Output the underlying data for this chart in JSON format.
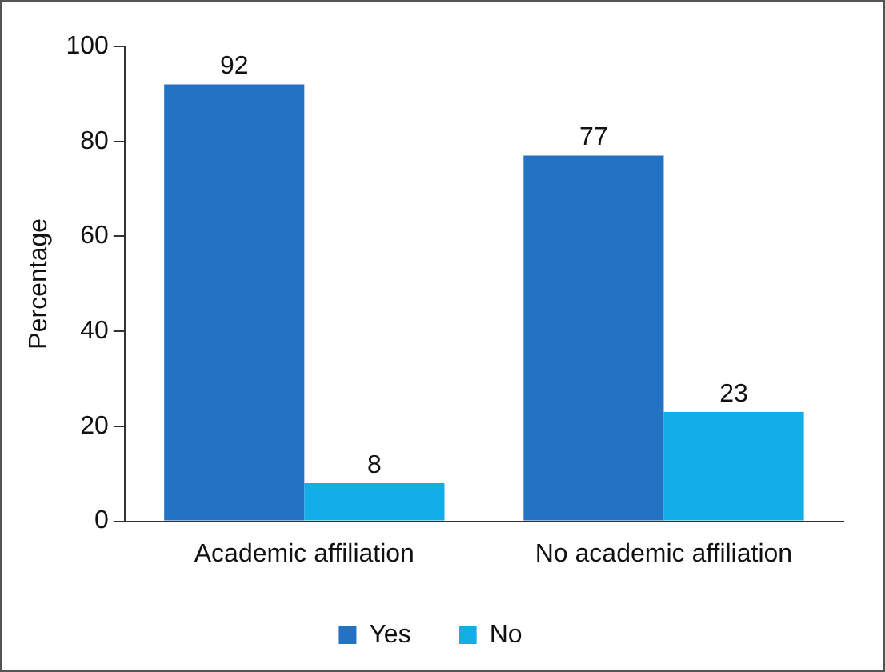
{
  "chart_data": {
    "type": "bar",
    "ylabel": "Percentage",
    "categories": [
      "Academic affiliation",
      "No academic affiliation"
    ],
    "series": [
      {
        "name": "Yes",
        "color": "#2372c4",
        "values": [
          92,
          77
        ]
      },
      {
        "name": "No",
        "color": "#12aee8",
        "values": [
          8,
          23
        ]
      }
    ],
    "ylim": [
      0,
      100
    ],
    "yticks": [
      0,
      20,
      40,
      60,
      80,
      100
    ],
    "grid": false,
    "legend": "bottom",
    "data_labels": true
  }
}
